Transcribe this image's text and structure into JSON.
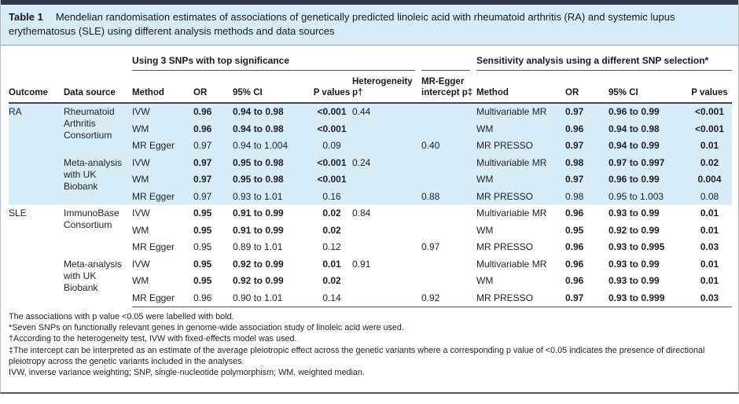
{
  "colors": {
    "top_bar": "#353a4b",
    "band_blue": "#d8ecf8",
    "caption_bg": "#d8ecf8",
    "rule_dark": "#55585e",
    "text": "#1f2023"
  },
  "title_bar": {
    "label": "Table 1",
    "caption": "Mendelian randomisation estimates of associations of genetically predicted linoleic acid with rheumatoid arthritis (RA) and systemic lupus erythematosus (SLE) using different analysis methods and data sources"
  },
  "group_headers": {
    "left": "Using 3 SNPs with top significance",
    "right": "Sensitivity analysis using a different SNP selection*"
  },
  "columns": [
    "Outcome",
    "Data source",
    "Method",
    "OR",
    "95% CI",
    "P values",
    "Heterogeneity p†",
    "MR-Egger intercept p‡",
    "Method",
    "OR",
    "95% CI",
    "P values"
  ],
  "blocks": [
    {
      "outcome": "RA",
      "band": "blue",
      "groups": [
        {
          "source": "Rheumatoid Arthritis Consortium",
          "rows": [
            {
              "method": "IVW",
              "or": "0.96",
              "ci": "0.94 to 0.98",
              "p": "<0.001",
              "het": "0.44",
              "egger": "",
              "bold": true,
              "method2": "Multivariable MR",
              "or2": "0.97",
              "ci2": "0.96 to 0.99",
              "p2": "<0.001",
              "bold2": true
            },
            {
              "method": "WM",
              "or": "0.96",
              "ci": "0.94 to 0.98",
              "p": "<0.001",
              "het": "",
              "egger": "",
              "bold": true,
              "method2": "WM",
              "or2": "0.96",
              "ci2": "0.94 to 0.98",
              "p2": "<0.001",
              "bold2": true
            },
            {
              "method": "MR Egger",
              "or": "0.97",
              "ci": "0.94 to 1.004",
              "p": "0.09",
              "het": "",
              "egger": "0.40",
              "bold": false,
              "method2": "MR PRESSO",
              "or2": "0.97",
              "ci2": "0.94 to 0.99",
              "p2": "0.01",
              "bold2": true
            }
          ]
        },
        {
          "source": "Meta-analysis with UK Biobank",
          "rows": [
            {
              "method": "IVW",
              "or": "0.97",
              "ci": "0.95 to 0.98",
              "p": "<0.001",
              "het": "0.24",
              "egger": "",
              "bold": true,
              "method2": "Multivariable MR",
              "or2": "0.98",
              "ci2": "0.97 to 0.997",
              "p2": "0.02",
              "bold2": true
            },
            {
              "method": "WM",
              "or": "0.97",
              "ci": "0.95 to 0.98",
              "p": "<0.001",
              "het": "",
              "egger": "",
              "bold": true,
              "method2": "WM",
              "or2": "0.97",
              "ci2": "0.96 to 0.99",
              "p2": "0.004",
              "bold2": true
            },
            {
              "method": "MR Egger",
              "or": "0.97",
              "ci": "0.93 to 1.01",
              "p": "0.16",
              "het": "",
              "egger": "0.88",
              "bold": false,
              "method2": "MR PRESSO",
              "or2": "0.98",
              "ci2": "0.95 to 1.003",
              "p2": "0.08",
              "bold2": false
            }
          ]
        }
      ]
    },
    {
      "outcome": "SLE",
      "band": "white",
      "groups": [
        {
          "source": "ImmunoBase Consortium",
          "rows": [
            {
              "method": "IVW",
              "or": "0.95",
              "ci": "0.91 to 0.99",
              "p": "0.02",
              "het": "0.84",
              "egger": "",
              "bold": true,
              "method2": "Multivariable MR",
              "or2": "0.96",
              "ci2": "0.93 to 0.99",
              "p2": "0.01",
              "bold2": true
            },
            {
              "method": "WM",
              "or": "0.95",
              "ci": "0.91 to 0.99",
              "p": "0.02",
              "het": "",
              "egger": "",
              "bold": true,
              "method2": "WM",
              "or2": "0.95",
              "ci2": "0.92 to 0.99",
              "p2": "0.01",
              "bold2": true
            },
            {
              "method": "MR Egger",
              "or": "0.95",
              "ci": "0.89 to 1.01",
              "p": "0.12",
              "het": "",
              "egger": "0.97",
              "bold": false,
              "method2": "MR PRESSO",
              "or2": "0.96",
              "ci2": "0.93 to 0.995",
              "p2": "0.03",
              "bold2": true
            }
          ]
        },
        {
          "source": "Meta-analysis with UK Biobank",
          "rows": [
            {
              "method": "IVW",
              "or": "0.95",
              "ci": "0.92 to 0.99",
              "p": "0.01",
              "het": "0.91",
              "egger": "",
              "bold": true,
              "method2": "Multivariable MR",
              "or2": "0.96",
              "ci2": "0.93 to 0.99",
              "p2": "0.01",
              "bold2": true
            },
            {
              "method": "WM",
              "or": "0.95",
              "ci": "0.92 to 0.99",
              "p": "0.02",
              "het": "",
              "egger": "",
              "bold": true,
              "method2": "WM",
              "or2": "0.96",
              "ci2": "0.93 to 0.99",
              "p2": "0.01",
              "bold2": true
            },
            {
              "method": "MR Egger",
              "or": "0.96",
              "ci": "0.90 to 1.01",
              "p": "0.14",
              "het": "",
              "egger": "0.92",
              "bold": false,
              "method2": "MR PRESSO",
              "or2": "0.97",
              "ci2": "0.93 to 0.999",
              "p2": "0.03",
              "bold2": true
            }
          ]
        }
      ]
    }
  ],
  "footnotes": [
    "The associations with p value <0.05 were labelled with bold.",
    "*Seven SNPs on functionally relevant genes in genome-wide association study of linoleic acid were used.",
    "†According to the heterogeneity test, IVW with fixed-effects model was used.",
    "‡The intercept can be interpreted as an estimate of the average pleiotropic effect across the genetic variants where a corresponding p value of <0.05 indicates the presence of directional pleiotropy across the genetic variants included in the analyses.",
    "IVW, inverse variance weighting; SNP, single-nucleotide polymorphism; WM, weighted median."
  ]
}
